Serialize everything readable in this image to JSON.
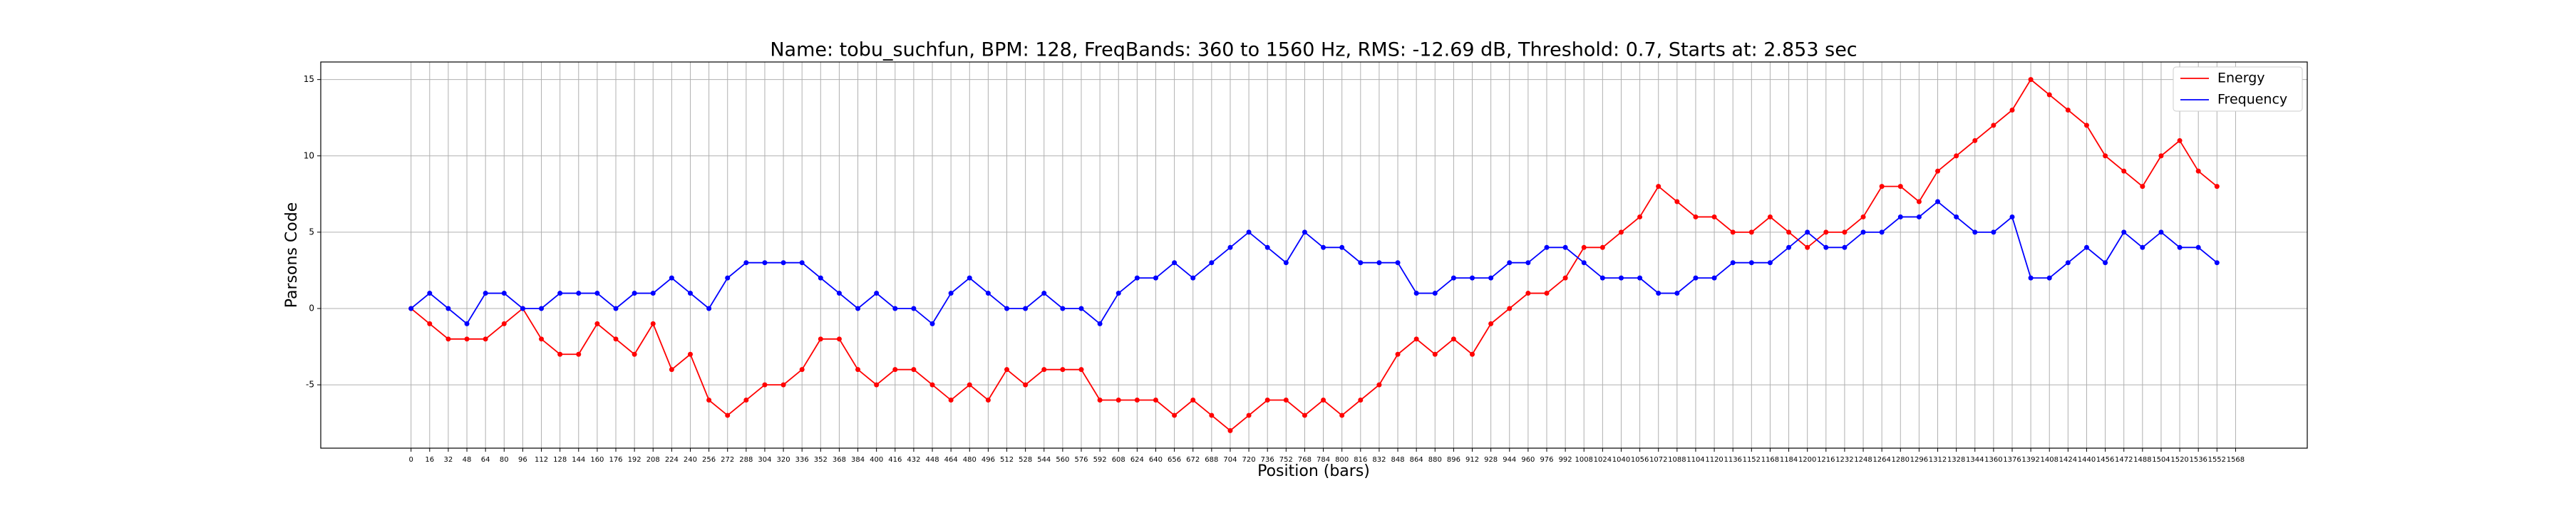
{
  "chart_data": {
    "type": "line",
    "title": "Name: tobu_suchfun, BPM: 128, FreqBands: 360 to 1560 Hz, RMS: -12.69 dB, Threshold: 0.7, Starts at: 2.853 sec",
    "x_label": "Position (bars)",
    "y_label": "Parsons Code",
    "x": [
      0,
      16,
      32,
      48,
      64,
      80,
      96,
      112,
      128,
      144,
      160,
      176,
      192,
      208,
      224,
      240,
      256,
      272,
      288,
      304,
      320,
      336,
      352,
      368,
      384,
      400,
      416,
      432,
      448,
      464,
      480,
      496,
      512,
      528,
      544,
      560,
      576,
      592,
      608,
      624,
      640,
      656,
      672,
      688,
      704,
      720,
      736,
      752,
      768,
      784,
      800,
      816,
      832,
      848,
      864,
      880,
      896,
      912,
      928,
      944,
      960,
      976,
      992,
      1008,
      1024,
      1040,
      1056,
      1072,
      1088,
      1104,
      1120,
      1136,
      1152,
      1168,
      1184,
      1200,
      1216,
      1232,
      1248,
      1264,
      1280,
      1296,
      1312,
      1328,
      1344,
      1360,
      1376,
      1392,
      1408,
      1424,
      1440,
      1456,
      1472,
      1488,
      1504,
      1520,
      1536,
      1552
    ],
    "series": [
      {
        "name": "Energy",
        "color": "red",
        "values": [
          0,
          -1,
          -2,
          -2,
          -2,
          -1,
          0,
          -2,
          -3,
          -3,
          -1,
          -2,
          -3,
          -1,
          -4,
          -3,
          -6,
          -7,
          -6,
          -5,
          -5,
          -4,
          -2,
          -2,
          -4,
          -5,
          -4,
          -4,
          -5,
          -6,
          -5,
          -6,
          -4,
          -5,
          -4,
          -4,
          -4,
          -6,
          -6,
          -6,
          -6,
          -7,
          -6,
          -7,
          -8,
          -7,
          -6,
          -6,
          -7,
          -6,
          -7,
          -6,
          -5,
          -3,
          -2,
          -3,
          -2,
          -3,
          -1,
          0,
          1,
          1,
          2,
          4,
          4,
          5,
          6,
          8,
          7,
          6,
          6,
          5,
          5,
          6,
          5,
          4,
          5,
          5,
          6,
          8,
          8,
          7,
          9,
          10,
          11,
          12,
          13,
          15,
          14,
          13,
          12,
          10,
          9,
          8,
          10,
          11,
          9,
          8
        ]
      },
      {
        "name": "Frequency",
        "color": "blue",
        "values": [
          0,
          1,
          0,
          -1,
          1,
          1,
          0,
          0,
          1,
          1,
          1,
          0,
          1,
          1,
          2,
          1,
          0,
          2,
          3,
          3,
          3,
          3,
          2,
          1,
          0,
          1,
          0,
          0,
          -1,
          1,
          2,
          1,
          0,
          0,
          1,
          0,
          0,
          -1,
          1,
          2,
          2,
          3,
          2,
          3,
          4,
          5,
          4,
          3,
          5,
          4,
          4,
          3,
          3,
          3,
          1,
          1,
          2,
          2,
          2,
          3,
          3,
          4,
          4,
          3,
          2,
          2,
          2,
          1,
          1,
          2,
          2,
          3,
          3,
          3,
          4,
          5,
          4,
          4,
          5,
          5,
          6,
          6,
          7,
          6,
          5,
          5,
          6,
          2,
          2,
          3,
          4,
          3,
          5,
          4,
          5,
          4,
          4,
          3
        ]
      }
    ],
    "xlim": [
      -77.6,
      1629.6
    ],
    "ylim": [
      -9.15,
      16.15
    ],
    "xticks": [
      0,
      16,
      32,
      48,
      64,
      80,
      96,
      112,
      128,
      144,
      160,
      176,
      192,
      208,
      224,
      240,
      256,
      272,
      288,
      304,
      320,
      336,
      352,
      368,
      384,
      400,
      416,
      432,
      448,
      464,
      480,
      496,
      512,
      528,
      544,
      560,
      576,
      592,
      608,
      624,
      640,
      656,
      672,
      688,
      704,
      720,
      736,
      752,
      768,
      784,
      800,
      816,
      832,
      848,
      864,
      880,
      896,
      912,
      928,
      944,
      960,
      976,
      992,
      1008,
      1024,
      1040,
      1056,
      1072,
      1088,
      1104,
      1120,
      1136,
      1152,
      1168,
      1184,
      1200,
      1216,
      1232,
      1248,
      1264,
      1280,
      1296,
      1312,
      1328,
      1344,
      1360,
      1376,
      1392,
      1408,
      1424,
      1440,
      1456,
      1472,
      1488,
      1504,
      1520,
      1536,
      1552,
      1568
    ],
    "yticks": [
      -5,
      0,
      5,
      10,
      15
    ],
    "grid": true,
    "legend": "upper right"
  }
}
